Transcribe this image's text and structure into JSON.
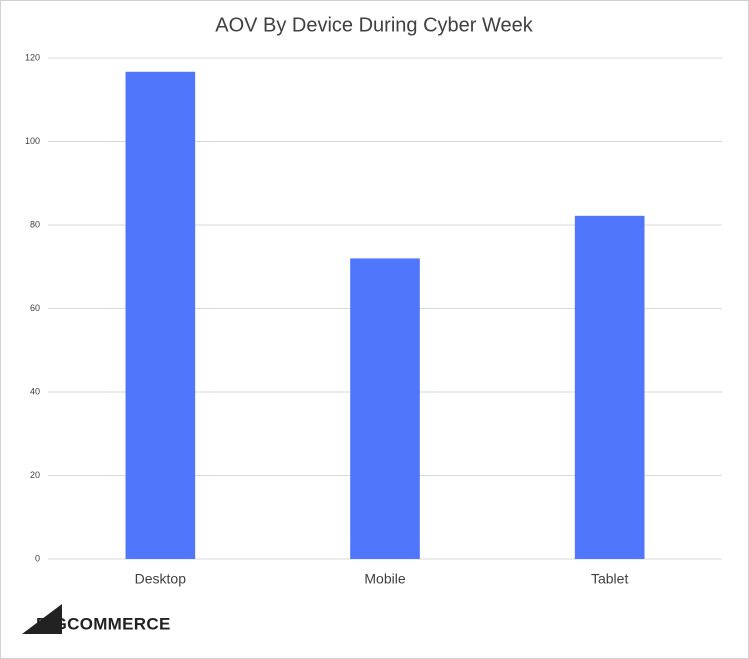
{
  "chart_data": {
    "type": "bar",
    "title": "AOV By Device During Cyber Week",
    "categories": [
      "Desktop",
      "Mobile",
      "Tablet"
    ],
    "values": [
      116.7,
      72,
      82.2
    ],
    "color": "#4f76fb",
    "ylim": [
      0,
      120
    ],
    "yticks": [
      0,
      20,
      40,
      60,
      80,
      100,
      120
    ],
    "grid": true
  },
  "logo": "BIGCOMMERCE"
}
